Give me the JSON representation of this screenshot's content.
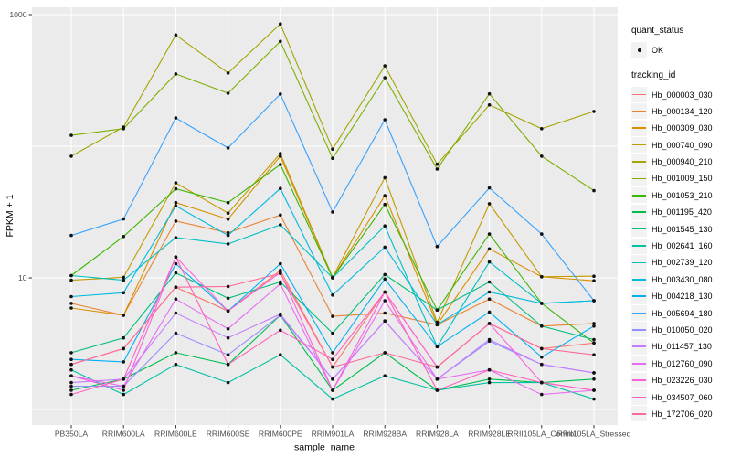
{
  "chart_data": {
    "type": "line",
    "title": "",
    "xlabel": "sample_name",
    "ylabel": "FPKM + 1",
    "y_scale": "log10",
    "ylim": [
      0.76,
      1150
    ],
    "grid": "on",
    "y_tick_values": [
      1000,
      10
    ],
    "y_tick_labels": [
      "1000",
      "10"
    ],
    "y_gridline_values": [
      1,
      10,
      100,
      1000
    ],
    "legend_position": "right",
    "legend": {
      "quant_status_title": "quant_status",
      "quant_status_items": [
        "OK"
      ],
      "series_title": "tracking_id"
    },
    "point_color": "#111111",
    "panel_bg": "#EBEBEB",
    "categories": [
      "PB350LA",
      "RRIM600LA",
      "RRIM600LE",
      "RRIM600SE",
      "RRIM600PE",
      "RRIM901LA",
      "RRIM928BA",
      "RRIM928LA",
      "RRIM928LE",
      "RRII105LA_Control",
      "RRII105LA_Stressed"
    ],
    "series": [
      {
        "name": "Hb_000003_030",
        "color": "#F8766D",
        "values": [
          2.2,
          2.9,
          8.5,
          5.6,
          11.4,
          2.1,
          7.8,
          2.1,
          4.5,
          2.9,
          3.2
        ]
      },
      {
        "name": "Hb_000134_120",
        "color": "#EA8331",
        "values": [
          6.4,
          5.2,
          27.0,
          22.0,
          30.0,
          5.1,
          5.4,
          4.4,
          6.9,
          4.3,
          4.5
        ]
      },
      {
        "name": "Hb_000309_030",
        "color": "#D89000",
        "values": [
          5.9,
          5.2,
          37.3,
          27.9,
          84.0,
          10.0,
          42.1,
          4.4,
          16.6,
          10.2,
          9.5
        ]
      },
      {
        "name": "Hb_000740_090",
        "color": "#C09B00",
        "values": [
          9.6,
          10.1,
          52.7,
          31.0,
          88.0,
          10.1,
          57.7,
          4.6,
          36.6,
          10.2,
          10.3
        ]
      },
      {
        "name": "Hb_000940_210",
        "color": "#A3A500",
        "values": [
          84,
          140,
          700,
          360,
          850,
          95,
          408,
          73,
          206,
          136,
          184
        ]
      },
      {
        "name": "Hb_001009_150",
        "color": "#7CAE00",
        "values": [
          121,
          136,
          354,
          253,
          626,
          81,
          332,
          67,
          250,
          84,
          46
        ]
      },
      {
        "name": "Hb_001053_210",
        "color": "#39B600",
        "values": [
          10.4,
          20.6,
          47.5,
          37.3,
          72.6,
          10.0,
          36.1,
          5.7,
          21.5,
          6.4,
          3.2
        ]
      },
      {
        "name": "Hb_001195_420",
        "color": "#00BB4E",
        "values": [
          1.4,
          1.7,
          2.7,
          2.2,
          5.2,
          1.4,
          2.7,
          1.4,
          1.7,
          1.6,
          1.7
        ]
      },
      {
        "name": "Hb_001545_130",
        "color": "#00BF7D",
        "values": [
          2.7,
          3.5,
          10.9,
          7.0,
          9.3,
          3.8,
          10.6,
          5.7,
          9.3,
          4.3,
          3.4
        ]
      },
      {
        "name": "Hb_002641_160",
        "color": "#00C1A3",
        "values": [
          2.0,
          1.3,
          2.2,
          1.6,
          2.6,
          1.2,
          1.8,
          1.4,
          1.6,
          1.6,
          1.2
        ]
      },
      {
        "name": "Hb_002739_120",
        "color": "#00BFC4",
        "values": [
          10.4,
          9.6,
          20.2,
          18.1,
          25.3,
          10.0,
          24.8,
          3.0,
          13.2,
          6.4,
          6.7
        ]
      },
      {
        "name": "Hb_003430_080",
        "color": "#00BAE0",
        "values": [
          7.2,
          7.7,
          35.2,
          21.0,
          47.8,
          7.4,
          17.1,
          4.4,
          7.8,
          6.4,
          6.7
        ]
      },
      {
        "name": "Hb_004218_130",
        "color": "#00B0F6",
        "values": [
          2.4,
          2.3,
          12.8,
          5.6,
          12.8,
          2.7,
          9.8,
          3.0,
          5.5,
          2.5,
          4.3
        ]
      },
      {
        "name": "Hb_005694_180",
        "color": "#35A2FF",
        "values": [
          21,
          28,
          164,
          97,
          249,
          31.6,
          159,
          17.3,
          48.2,
          21.5,
          6.7
        ]
      },
      {
        "name": "Hb_010050_020",
        "color": "#9590FF",
        "values": [
          1.5,
          1.5,
          3.8,
          2.6,
          5.2,
          1.7,
          4.7,
          1.7,
          3.3,
          2.2,
          1.9
        ]
      },
      {
        "name": "Hb_011457_130",
        "color": "#C77CFF",
        "values": [
          1.6,
          1.7,
          5.4,
          3.5,
          5.3,
          1.7,
          4.7,
          1.7,
          3.4,
          2.2,
          1.9
        ]
      },
      {
        "name": "Hb_012760_090",
        "color": "#E76BF3",
        "values": [
          1.8,
          1.5,
          6.9,
          4.1,
          9.0,
          1.4,
          6.7,
          1.7,
          2.0,
          1.3,
          1.4
        ]
      },
      {
        "name": "Hb_023226_030",
        "color": "#FA62DB",
        "values": [
          1.8,
          1.4,
          14.4,
          5.6,
          11.0,
          1.4,
          7.8,
          2.1,
          4.5,
          1.6,
          1.4
        ]
      },
      {
        "name": "Hb_034507_060",
        "color": "#FF62BC",
        "values": [
          1.3,
          1.7,
          14.4,
          2.2,
          4.0,
          2.4,
          7.8,
          1.4,
          2.0,
          1.6,
          1.4
        ]
      },
      {
        "name": "Hb_172706_020",
        "color": "#FF6A98",
        "values": [
          2.2,
          2.9,
          8.5,
          8.6,
          10.8,
          2.1,
          2.7,
          2.1,
          4.5,
          2.9,
          2.6
        ]
      }
    ]
  }
}
